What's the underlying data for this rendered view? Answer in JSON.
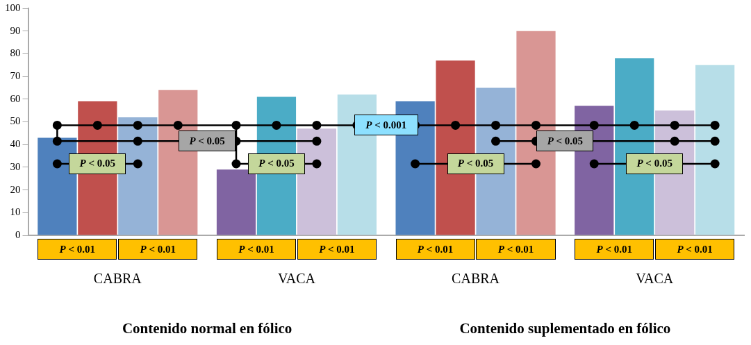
{
  "chart_data": {
    "type": "bar",
    "categories": [
      "CABRA",
      "VACA",
      "CABRA",
      "VACA"
    ],
    "series": [
      {
        "colors": [
          "#4f81bd",
          "#8064a2",
          "#4f81bd",
          "#8064a2"
        ],
        "values": [
          43,
          29,
          59,
          57
        ]
      },
      {
        "colors": [
          "#c0504d",
          "#4bacc6",
          "#c0504d",
          "#4bacc6"
        ],
        "values": [
          59,
          61,
          77,
          78
        ]
      },
      {
        "colors": [
          "#95b3d7",
          "#ccc0da",
          "#95b3d7",
          "#ccc0da"
        ],
        "values": [
          52,
          47,
          65,
          55
        ]
      },
      {
        "colors": [
          "#d99694",
          "#b7dee8",
          "#d99694",
          "#b7dee8"
        ],
        "values": [
          64,
          62,
          90,
          75
        ]
      }
    ],
    "ylim": [
      0,
      100
    ],
    "yticks": [
      0,
      10,
      20,
      30,
      40,
      50,
      60,
      70,
      80,
      90,
      100
    ],
    "annotations": [
      "Contenido normal en fólico",
      "Contenido suplementado en fólico",
      "P < 0.01",
      "P < 0.01",
      "P < 0.01",
      "P < 0.01",
      "P < 0.01",
      "P < 0.01",
      "P < 0.01",
      "P < 0.01",
      "P < 0.001",
      "P < 0.05",
      "P < 0.05",
      "P < 0.05",
      "P < 0.05",
      "P < 0.05",
      "P < 0.05"
    ]
  }
}
